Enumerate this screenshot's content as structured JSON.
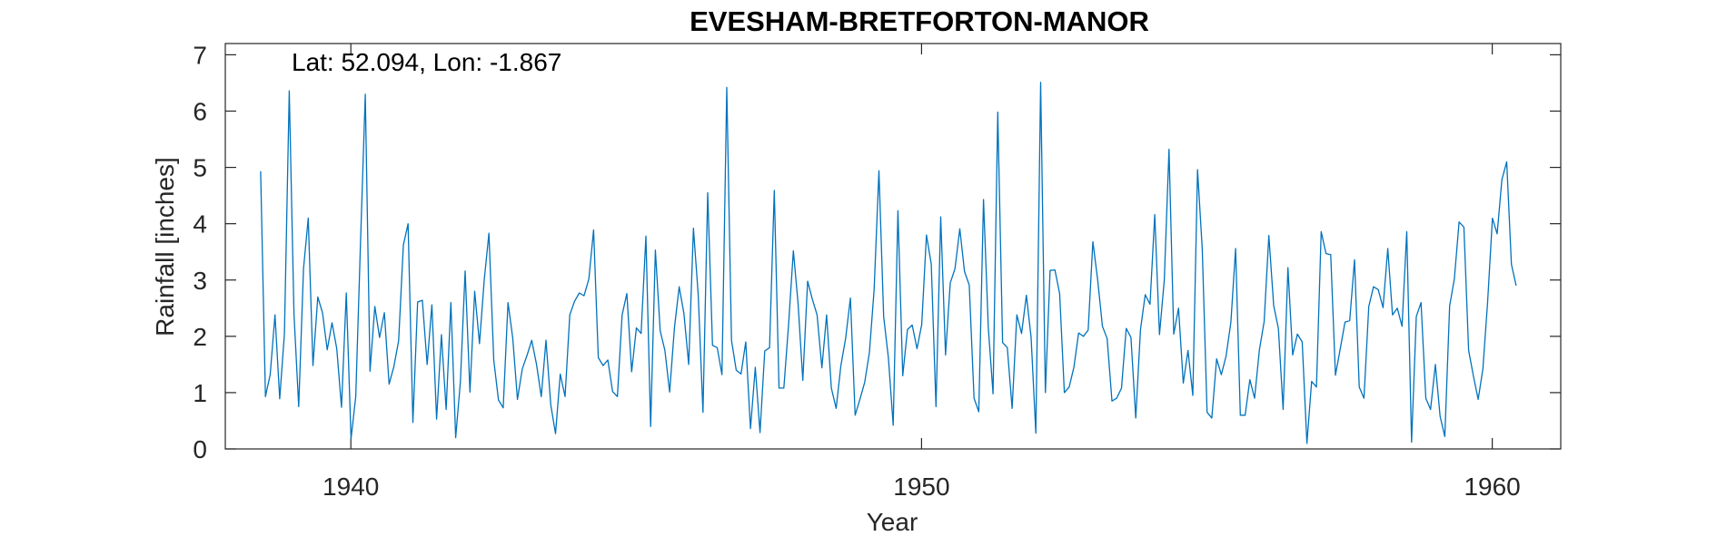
{
  "chart_data": {
    "type": "line",
    "title": "EVESHAM-BRETFORTON-MANOR",
    "xlabel": "Year",
    "ylabel": "Rainfall [inches]",
    "annotation": "Lat: 52.094, Lon: -1.867",
    "xlim": [
      1937.8,
      1961.2
    ],
    "ylim": [
      0,
      7.2
    ],
    "xticks": [
      1940,
      1950,
      1960
    ],
    "yticks": [
      0,
      1,
      2,
      3,
      4,
      5,
      6,
      7
    ],
    "grid": false,
    "box": true,
    "series": [
      {
        "color": "#0072BD",
        "x_start": 1938.42,
        "x_step": 0.08333,
        "values": [
          4.93,
          0.93,
          1.32,
          2.38,
          0.89,
          2.05,
          6.36,
          2.4,
          0.75,
          3.2,
          4.1,
          1.48,
          2.7,
          2.42,
          1.76,
          2.24,
          1.78,
          0.74,
          2.77,
          0.18,
          0.93,
          3.7,
          6.3,
          1.38,
          2.53,
          1.98,
          2.42,
          1.15,
          1.46,
          1.92,
          3.62,
          4.0,
          0.47,
          2.61,
          2.64,
          1.5,
          2.56,
          0.53,
          2.03,
          0.7,
          2.6,
          0.2,
          1.2,
          3.16,
          1.01,
          2.8,
          1.87,
          3.0,
          3.83,
          1.58,
          0.87,
          0.73,
          2.6,
          1.97,
          0.88,
          1.42,
          1.66,
          1.93,
          1.5,
          0.93,
          1.93,
          0.78,
          0.27,
          1.33,
          0.93,
          2.38,
          2.62,
          2.77,
          2.72,
          3.02,
          3.89,
          1.62,
          1.48,
          1.58,
          1.02,
          0.93,
          2.38,
          2.76,
          1.37,
          2.15,
          2.05,
          3.78,
          0.4,
          3.53,
          2.1,
          1.75,
          1.01,
          2.15,
          2.88,
          2.41,
          1.5,
          3.92,
          2.73,
          0.65,
          4.55,
          1.84,
          1.8,
          1.32,
          6.42,
          1.93,
          1.4,
          1.33,
          1.9,
          0.36,
          1.45,
          0.29,
          1.74,
          1.8,
          4.59,
          1.08,
          1.08,
          2.2,
          3.52,
          2.58,
          1.22,
          2.98,
          2.66,
          2.38,
          1.44,
          2.38,
          1.08,
          0.72,
          1.48,
          1.96,
          2.68,
          0.6,
          0.88,
          1.18,
          1.71,
          2.83,
          4.94,
          2.35,
          1.62,
          0.42,
          4.23,
          1.3,
          2.12,
          2.2,
          1.78,
          2.21,
          3.8,
          3.28,
          0.75,
          4.12,
          1.67,
          2.95,
          3.2,
          3.91,
          3.15,
          2.91,
          0.9,
          0.66,
          4.43,
          2.15,
          0.98,
          5.98,
          1.89,
          1.8,
          0.72,
          2.38,
          2.05,
          2.73,
          1.98,
          0.28,
          6.51,
          1.0,
          3.17,
          3.18,
          2.76,
          1.0,
          1.1,
          1.45,
          2.06,
          2.0,
          2.11,
          3.68,
          3.0,
          2.18,
          1.96,
          0.85,
          0.9,
          1.08,
          2.14,
          1.98,
          0.55,
          2.12,
          2.74,
          2.57,
          4.16,
          2.03,
          3.0,
          5.32,
          2.04,
          2.5,
          1.17,
          1.75,
          0.95,
          4.96,
          3.55,
          0.65,
          0.55,
          1.6,
          1.32,
          1.65,
          2.25,
          3.56,
          0.6,
          0.6,
          1.23,
          0.9,
          1.76,
          2.26,
          3.79,
          2.55,
          2.14,
          0.7,
          3.22,
          1.67,
          2.04,
          1.9,
          0.1,
          1.2,
          1.1,
          3.86,
          3.47,
          3.45,
          1.31,
          1.78,
          2.25,
          2.28,
          3.36,
          1.1,
          0.9,
          2.53,
          2.88,
          2.83,
          2.51,
          3.56,
          2.38,
          2.5,
          2.18,
          3.86,
          0.12,
          2.35,
          2.6,
          0.9,
          0.7,
          1.5,
          0.58,
          0.22,
          2.54,
          3.02,
          4.03,
          3.94,
          1.75,
          1.3,
          0.88,
          1.42,
          2.61,
          4.1,
          3.82,
          4.78,
          5.1,
          3.28,
          2.9
        ]
      }
    ]
  }
}
